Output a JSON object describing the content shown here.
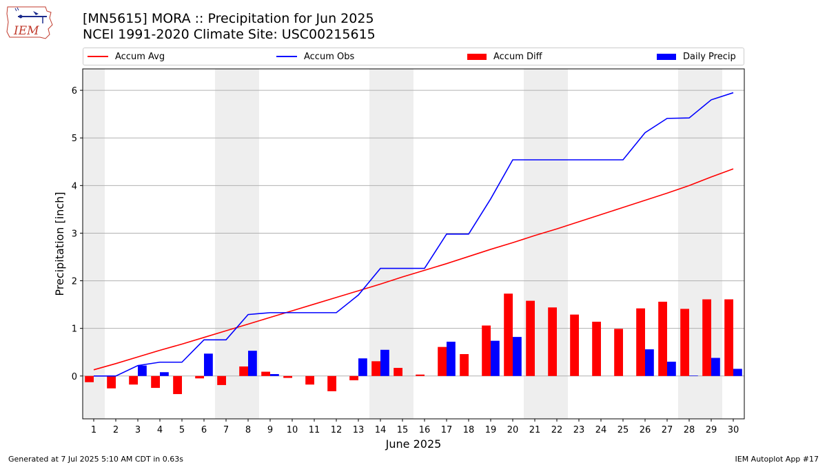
{
  "header": {
    "title_line1": "[MN5615] MORA :: Precipitation for Jun 2025",
    "title_line2": "NCEI 1991-2020 Climate Site: USC00215615"
  },
  "logo": {
    "icon": "iem-logo-icon",
    "text": "IEM"
  },
  "legend": {
    "accum_avg": "Accum Avg",
    "accum_obs": "Accum Obs",
    "accum_diff": "Accum Diff",
    "daily_precip": "Daily Precip"
  },
  "footer": {
    "left": "Generated at 7 Jul 2025 5:10 AM CDT in 0.63s",
    "right": "IEM Autoplot App #17"
  },
  "colors": {
    "accum_avg": "#ff0000",
    "accum_obs": "#0000ff",
    "accum_diff": "#ff0000",
    "daily_precip": "#0000ff",
    "weekend_shade": "#eeeeee",
    "grid": "#b0b0b0"
  },
  "chart_data": {
    "type": "bar",
    "xlabel": "June 2025",
    "ylabel": "Precipitation [inch]",
    "ylim": [
      -0.9,
      6.45
    ],
    "yticks": [
      0,
      1,
      2,
      3,
      4,
      5,
      6
    ],
    "grid": true,
    "legend_position": "top",
    "x": [
      1,
      2,
      3,
      4,
      5,
      6,
      7,
      8,
      9,
      10,
      11,
      12,
      13,
      14,
      15,
      16,
      17,
      18,
      19,
      20,
      21,
      22,
      23,
      24,
      25,
      26,
      27,
      28,
      29,
      30
    ],
    "weekend_days": [
      1,
      7,
      8,
      14,
      15,
      21,
      22,
      28,
      29
    ],
    "series": [
      {
        "name": "Accum Avg",
        "kind": "line",
        "values": [
          0.13,
          0.26,
          0.4,
          0.54,
          0.67,
          0.81,
          0.95,
          1.09,
          1.23,
          1.37,
          1.51,
          1.65,
          1.79,
          1.93,
          2.08,
          2.22,
          2.36,
          2.51,
          2.66,
          2.8,
          2.95,
          3.09,
          3.24,
          3.39,
          3.54,
          3.69,
          3.84,
          4.0,
          4.18,
          4.35
        ]
      },
      {
        "name": "Accum Obs",
        "kind": "line",
        "values": [
          0.0,
          0.0,
          0.22,
          0.29,
          0.29,
          0.76,
          0.76,
          1.29,
          1.33,
          1.33,
          1.33,
          1.33,
          1.7,
          2.26,
          2.26,
          2.26,
          2.98,
          2.98,
          3.72,
          4.54,
          4.54,
          4.54,
          4.54,
          4.54,
          4.54,
          5.11,
          5.41,
          5.42,
          5.8,
          5.95
        ]
      },
      {
        "name": "Accum Diff",
        "kind": "bar",
        "values": [
          -0.13,
          -0.26,
          -0.18,
          -0.25,
          -0.38,
          -0.05,
          -0.19,
          0.2,
          0.09,
          -0.04,
          -0.18,
          -0.32,
          -0.09,
          0.31,
          0.17,
          0.03,
          0.61,
          0.46,
          1.06,
          1.73,
          1.58,
          1.44,
          1.29,
          1.14,
          0.99,
          1.42,
          1.56,
          1.41,
          1.61,
          1.61
        ]
      },
      {
        "name": "Daily Precip",
        "kind": "bar",
        "values": [
          0.0,
          0.0,
          0.22,
          0.08,
          0.0,
          0.47,
          0.0,
          0.53,
          0.04,
          0.0,
          0.0,
          0.0,
          0.37,
          0.55,
          0.0,
          0.0,
          0.72,
          0.0,
          0.74,
          0.82,
          0.0,
          0.0,
          0.0,
          0.0,
          0.0,
          0.56,
          0.3,
          0.01,
          0.38,
          0.15
        ]
      }
    ]
  }
}
